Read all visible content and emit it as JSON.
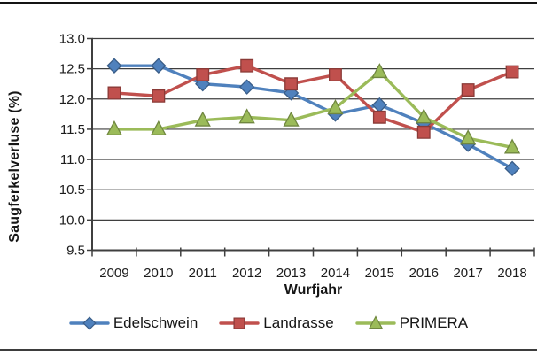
{
  "page": {
    "top_rule_color": "#141414",
    "bottom_rule_color": "#3d3d3d",
    "background": "#ffffff"
  },
  "chart_data": {
    "type": "line",
    "xlabel": "Wurfjahr",
    "ylabel": "Saugferkelverluse (%)",
    "categories": [
      "2009",
      "2010",
      "2011",
      "2012",
      "2013",
      "2014",
      "2015",
      "2016",
      "2017",
      "2018"
    ],
    "ylim": [
      9.5,
      13.0
    ],
    "ytick_step": 0.5,
    "ytick_labels": [
      "13.0",
      "12.5",
      "12.0",
      "11.5",
      "11.0",
      "10.5",
      "10.0",
      "9.5"
    ],
    "grid": true,
    "grid_color": "#3f3f3f",
    "axis_color": "#3f3f3f",
    "legend_position": "bottom",
    "series": [
      {
        "name": "Edelschwein",
        "marker": "diamond",
        "color": "#4F81BD",
        "values": [
          12.55,
          12.55,
          12.25,
          12.2,
          12.1,
          11.75,
          11.9,
          11.6,
          11.25,
          10.85
        ]
      },
      {
        "name": "Landrasse",
        "marker": "square",
        "color": "#C0504D",
        "values": [
          12.1,
          12.05,
          12.4,
          12.55,
          12.25,
          12.4,
          11.7,
          11.45,
          12.15,
          12.45
        ]
      },
      {
        "name": "PRIMERA",
        "marker": "triangle",
        "color": "#9BBB59",
        "values": [
          11.5,
          11.5,
          11.65,
          11.7,
          11.65,
          11.85,
          12.45,
          11.7,
          11.35,
          11.2
        ]
      }
    ]
  }
}
